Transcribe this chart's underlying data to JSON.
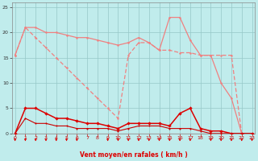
{
  "x": [
    0,
    1,
    2,
    3,
    4,
    5,
    6,
    7,
    8,
    9,
    10,
    11,
    12,
    13,
    14,
    15,
    16,
    17,
    18,
    19,
    20,
    21,
    22,
    23
  ],
  "line1": [
    15.5,
    21,
    21,
    20,
    20,
    19.5,
    19,
    19,
    18.5,
    18,
    17.5,
    18,
    19,
    18,
    16.5,
    23,
    23,
    18.5,
    15.5,
    15.5,
    10,
    7,
    0,
    0
  ],
  "line2": [
    15.5,
    21,
    19,
    17,
    15,
    13,
    11,
    9,
    7,
    5,
    3,
    15.5,
    18,
    18,
    16.5,
    16.5,
    16,
    16,
    15.5,
    15.5,
    15.5,
    15.5,
    0,
    0
  ],
  "line3": [
    0,
    5,
    5,
    4,
    3,
    3,
    2.5,
    2,
    2,
    1.5,
    1,
    2,
    2,
    2,
    2,
    1.5,
    4,
    5,
    1,
    0.5,
    0.5,
    0,
    0,
    0
  ],
  "line4": [
    0,
    3,
    2,
    2,
    1.5,
    1.5,
    1,
    1,
    1,
    1,
    0.5,
    1,
    1.5,
    1.5,
    1.5,
    1,
    1,
    1,
    0.5,
    0,
    0,
    0,
    0,
    0
  ],
  "bg_color": "#c0ecec",
  "grid_color": "#96c8c8",
  "color_light": "#f08080",
  "color_dark1": "#dd0000",
  "color_dark2": "#cc0000",
  "xlabel": "Vent moyen/en rafales ( km/h )",
  "ylim": [
    0,
    26
  ],
  "xlim": [
    -0.3,
    23.3
  ],
  "yticks": [
    0,
    5,
    10,
    15,
    20,
    25
  ],
  "xticks": [
    0,
    1,
    2,
    3,
    4,
    5,
    6,
    7,
    8,
    9,
    10,
    11,
    12,
    13,
    14,
    15,
    16,
    17,
    18,
    19,
    20,
    21,
    22,
    23
  ],
  "arrow_hours": [
    0,
    1,
    2,
    3,
    4,
    5,
    6,
    9,
    10,
    11,
    12,
    13,
    14,
    15,
    16,
    17,
    19,
    20,
    21,
    22,
    23
  ]
}
